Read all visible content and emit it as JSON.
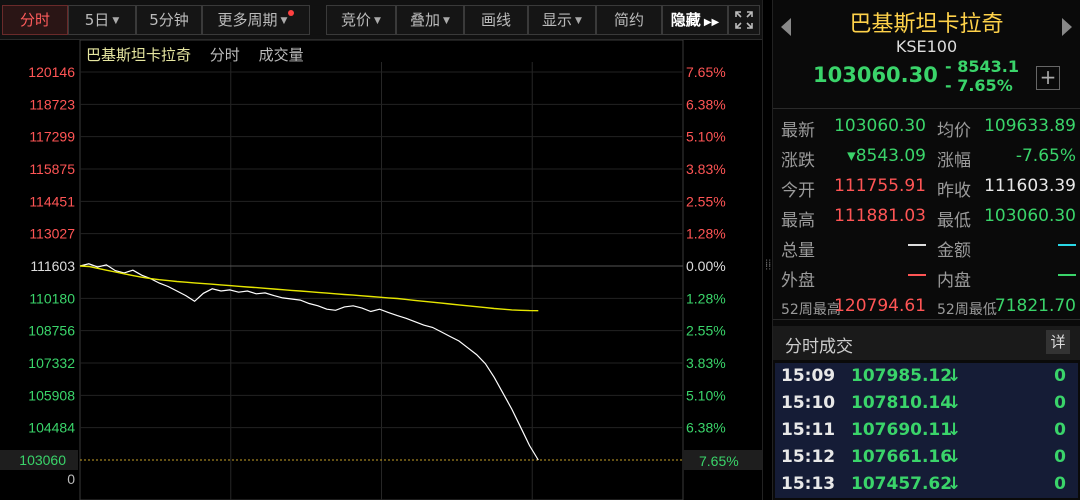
{
  "toolbar": {
    "buttons": [
      {
        "label": "分时",
        "active": true
      },
      {
        "label": "5日",
        "dropdown": true
      },
      {
        "label": "5分钟"
      },
      {
        "label": "更多周期",
        "dropdown": true,
        "badge": true
      },
      {
        "label": "竞价",
        "dropdown": true
      },
      {
        "label": "叠加",
        "dropdown": true
      },
      {
        "label": "画线"
      },
      {
        "label": "显示",
        "dropdown": true
      },
      {
        "label": "简约"
      },
      {
        "label": "隐藏"
      }
    ]
  },
  "chart": {
    "title_name": "巴基斯坦卡拉奇",
    "title_tab1": "分时",
    "title_tab2": "成交量",
    "current_price_label": "103060",
    "current_pct_label": "7.65%",
    "volume_zero_label": "0",
    "colors": {
      "up": "#ff5555",
      "down": "#3ad46a",
      "flat": "#dddddd",
      "price_line": "#ffffff",
      "avg_line": "#e6e600"
    }
  },
  "chart_data": {
    "type": "line",
    "prev_close": 111603,
    "ylim": [
      103060,
      120146
    ],
    "ytick_labels": [
      "120146",
      "118723",
      "117299",
      "115875",
      "114451",
      "113027",
      "111603",
      "110180",
      "108756",
      "107332",
      "105908",
      "104484"
    ],
    "pct_tick_labels": [
      "7.65%",
      "6.38%",
      "5.10%",
      "3.83%",
      "2.55%",
      "1.28%",
      "0.00%",
      "1.28%",
      "2.55%",
      "3.83%",
      "5.10%",
      "6.38%"
    ],
    "session_fraction_elapsed": 0.76,
    "series": [
      {
        "name": "price",
        "values": [
          111603,
          111700,
          111560,
          111650,
          111400,
          111300,
          111420,
          111200,
          111050,
          110850,
          110700,
          110500,
          110300,
          110050,
          110400,
          110600,
          110500,
          110550,
          110450,
          110500,
          110380,
          110420,
          110300,
          110200,
          110150,
          110100,
          109950,
          109850,
          109700,
          109650,
          109800,
          109850,
          109750,
          109600,
          109700,
          109550,
          109420,
          109300,
          109150,
          109000,
          108900,
          108700,
          108500,
          108300,
          108000,
          107700,
          107300,
          106700,
          106000,
          105300,
          104500,
          103700,
          103060
        ]
      },
      {
        "name": "average",
        "values": [
          111603,
          111580,
          111500,
          111420,
          111340,
          111260,
          111180,
          111110,
          111050,
          111000,
          110960,
          110920,
          110890,
          110860,
          110830,
          110800,
          110770,
          110740,
          110710,
          110680,
          110650,
          110620,
          110590,
          110560,
          110530,
          110500,
          110470,
          110440,
          110410,
          110380,
          110350,
          110320,
          110290,
          110260,
          110230,
          110200,
          110170,
          110130,
          110090,
          110050,
          110010,
          109970,
          109930,
          109890,
          109850,
          109810,
          109770,
          109730,
          109700,
          109670,
          109650,
          109640,
          109633.89
        ]
      }
    ]
  },
  "panel": {
    "name": "巴基斯坦卡拉奇",
    "code": "KSE100",
    "price": "103060.30",
    "change": "- 8543.1",
    "change_pct": "- 7.65%",
    "plus_label": "+",
    "stats": {
      "latest_label": "最新",
      "latest": "103060.30",
      "avg_label": "均价",
      "avg": "109633.89",
      "change_label": "涨跌",
      "change": "▾8543.09",
      "range_label": "涨幅",
      "range": "-7.65%",
      "open_label": "今开",
      "open": "111755.91",
      "prev_label": "昨收",
      "prev": "111603.39",
      "high_label": "最高",
      "high": "111881.03",
      "low_label": "最低",
      "low": "103060.30",
      "volume_label": "总量",
      "amount_label": "金额",
      "outer_label": "外盘",
      "inner_label": "内盘",
      "w52_high_label": "52周最高",
      "w52_high": "120794.61",
      "w52_low_label": "52周最低",
      "w52_low": "71821.70"
    },
    "trades_title": "分时成交",
    "trades_detail": "详",
    "trades": [
      {
        "time": "15:09",
        "price": "107985.12",
        "vol": "0"
      },
      {
        "time": "15:10",
        "price": "107810.14",
        "vol": "0"
      },
      {
        "time": "15:11",
        "price": "107690.11",
        "vol": "0"
      },
      {
        "time": "15:12",
        "price": "107661.16",
        "vol": "0"
      },
      {
        "time": "15:13",
        "price": "107457.62",
        "vol": "0"
      }
    ],
    "down_arrow": "↓"
  }
}
